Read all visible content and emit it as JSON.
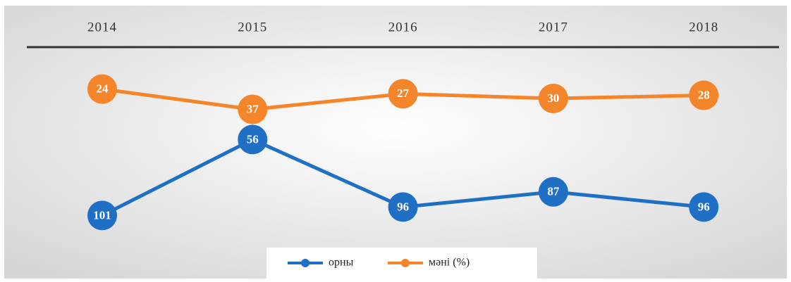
{
  "chart_data": {
    "type": "line",
    "categories": [
      "2014",
      "2015",
      "2016",
      "2017",
      "2018"
    ],
    "series": [
      {
        "name": "орны",
        "color": "#1f6fc5",
        "values": [
          101,
          56,
          96,
          87,
          96
        ]
      },
      {
        "name": "мәні (%)",
        "color": "#f4852a",
        "axis": "y2",
        "values": [
          24,
          37,
          27,
          30,
          28
        ]
      }
    ],
    "ylim": [
      115,
      15
    ],
    "y2lim": [
      120,
      12
    ]
  }
}
